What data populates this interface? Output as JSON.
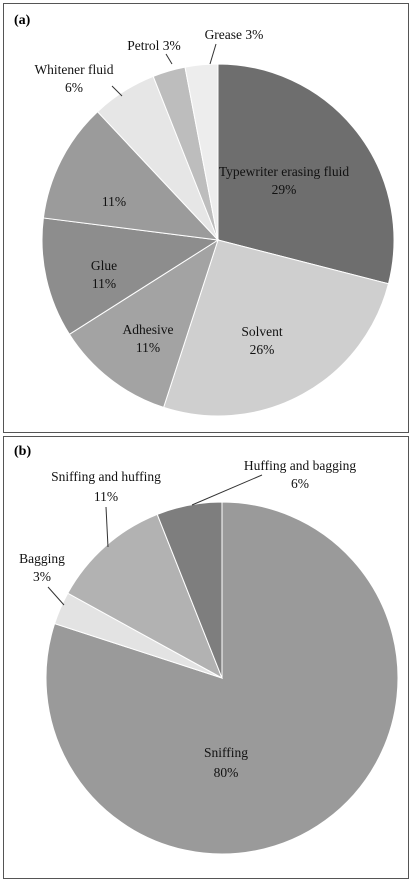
{
  "chart_data": [
    {
      "type": "pie",
      "panel_label": "(a)",
      "slices": [
        {
          "label": "Typewriter erasing fluid",
          "value": 29,
          "value_label": "29%",
          "color": "#6e6e6e"
        },
        {
          "label": "Solvent",
          "value": 26,
          "value_label": "26%",
          "color": "#cfcfcf"
        },
        {
          "label": "Adhesive",
          "value": 11,
          "value_label": "11%",
          "color": "#a3a3a3"
        },
        {
          "label": "Glue",
          "value": 11,
          "value_label": "11%",
          "color": "#8d8d8d"
        },
        {
          "label": "",
          "value": 11,
          "value_label": "11%",
          "color": "#9b9b9b"
        },
        {
          "label": "Whitener fluid",
          "value": 6,
          "value_label": "6%",
          "color": "#e6e6e6"
        },
        {
          "label": "Petrol",
          "value": 3,
          "value_label": "3%",
          "color": "#bdbdbd"
        },
        {
          "label": "Grease",
          "value": 3,
          "value_label": "3%",
          "color": "#ededed"
        }
      ]
    },
    {
      "type": "pie",
      "panel_label": "(b)",
      "slices": [
        {
          "label": "Sniffing",
          "value": 80,
          "value_label": "80%",
          "color": "#9a9a9a"
        },
        {
          "label": "Bagging",
          "value": 3,
          "value_label": "3%",
          "color": "#e3e3e3"
        },
        {
          "label": "Sniffing and huffing",
          "value": 11,
          "value_label": "11%",
          "color": "#b2b2b2"
        },
        {
          "label": "Huffing and bagging",
          "value": 6,
          "value_label": "6%",
          "color": "#7e7e7e"
        }
      ]
    }
  ]
}
